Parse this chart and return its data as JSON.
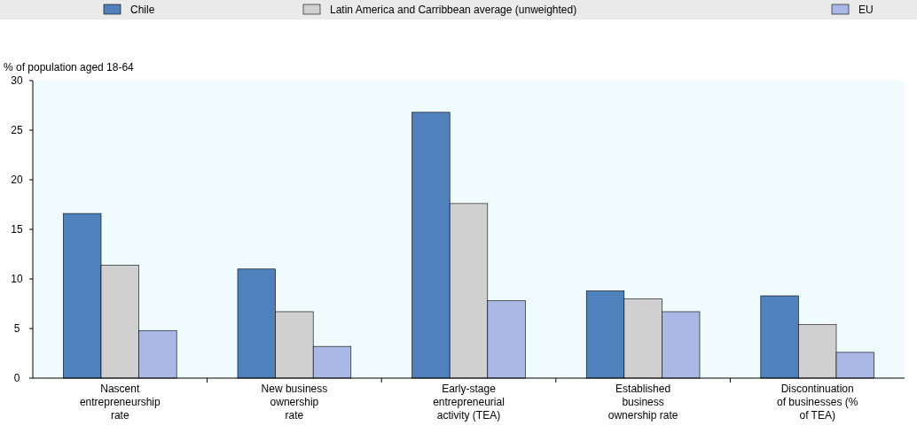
{
  "chart_data": {
    "type": "bar",
    "ylabel": "% of population aged 18-64",
    "categories": [
      "Nascent\nentrepreneurship\nrate",
      "New business\nownership\nrate",
      "Early-stage\nentrepreneurial\nactivity (TEA)",
      "Established\nbusiness\nownership rate",
      "Discontinuation\nof businesses (%\nof TEA)"
    ],
    "series": [
      {
        "name": "Chile",
        "color": "#4f81bd",
        "values": [
          16.6,
          11.0,
          26.8,
          8.8,
          8.3
        ]
      },
      {
        "name": "Latin America and Carribbean average (unweighted)",
        "color": "#d0d0d0",
        "values": [
          11.4,
          6.7,
          17.6,
          8.0,
          5.4
        ]
      },
      {
        "name": "EU",
        "color": "#a9b8e4",
        "values": [
          4.8,
          3.2,
          7.8,
          6.7,
          2.6
        ]
      }
    ],
    "ylim": [
      0,
      30
    ],
    "yticks": [
      0,
      5,
      10,
      15,
      20,
      25,
      30
    ],
    "grid": false,
    "legend": "top"
  }
}
